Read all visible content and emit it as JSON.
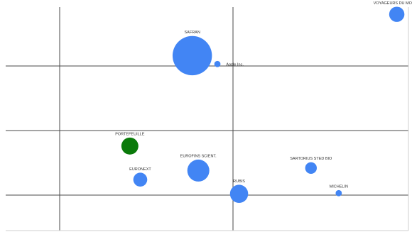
{
  "chart_data": {
    "type": "bubble",
    "title": "",
    "xlabel": "",
    "ylabel": "",
    "xlim": [
      0,
      4
    ],
    "ylim": [
      0,
      3.5
    ],
    "grid": true,
    "legend": "none",
    "colors": {
      "default": "#4285f4",
      "highlight": "#0a7a0a",
      "grid": "#4a4a4a",
      "label": "#333333"
    },
    "points": [
      {
        "label": "VOYAGEURS DU MONDE",
        "x": 3.89,
        "y": 2.8,
        "size": 1.2,
        "color": "#4285f4",
        "label_pos": "above"
      },
      {
        "label": "SAFRAN",
        "x": 1.53,
        "y": 2.16,
        "size": 8.0,
        "color": "#4285f4",
        "label_pos": "above"
      },
      {
        "label": "Apple Inc.",
        "x": 1.82,
        "y": 2.03,
        "size": 0.2,
        "color": "#4285f4",
        "label_pos": "right"
      },
      {
        "label": "PORTEFEUILLE",
        "x": 0.81,
        "y": 0.76,
        "size": 1.5,
        "color": "#0a7a0a",
        "label_pos": "above"
      },
      {
        "label": "EUROFINS SCIENT.",
        "x": 1.6,
        "y": 0.38,
        "size": 2.5,
        "color": "#4285f4",
        "label_pos": "above"
      },
      {
        "label": "EURONEXT",
        "x": 0.93,
        "y": 0.24,
        "size": 1.0,
        "color": "#4285f4",
        "label_pos": "above"
      },
      {
        "label": "SARTORIUS STED BIO",
        "x": 2.9,
        "y": 0.42,
        "size": 0.7,
        "color": "#4285f4",
        "label_pos": "above"
      },
      {
        "label": "RUBIS",
        "x": 2.07,
        "y": 0.02,
        "size": 1.7,
        "color": "#4285f4",
        "label_pos": "above"
      },
      {
        "label": "MICHELIN",
        "x": 3.22,
        "y": 0.03,
        "size": 0.2,
        "color": "#4285f4",
        "label_pos": "above"
      }
    ]
  }
}
